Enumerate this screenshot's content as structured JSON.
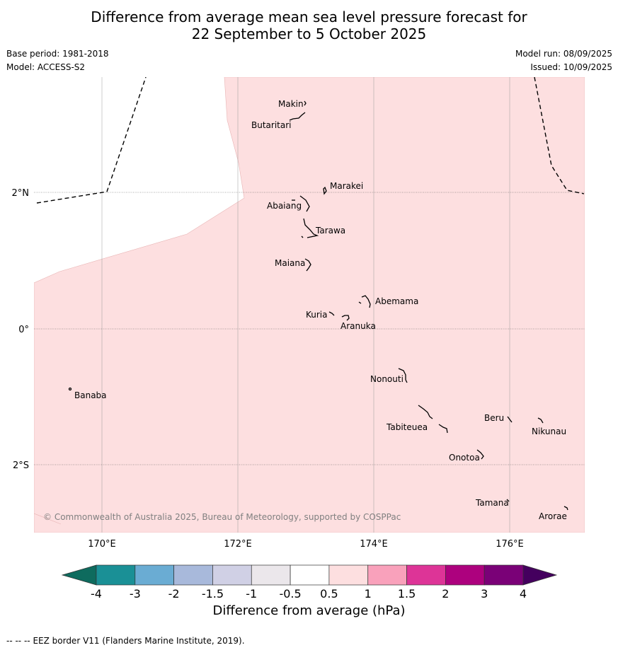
{
  "header": {
    "title_line1": "Difference from average mean sea level pressure forecast for",
    "title_line2": "22 September to 5 October 2025",
    "base_period": "Base period: 1981-2018",
    "model": "Model: ACCESS-S2",
    "model_run": "Model run: 08/09/2025",
    "issued": "Issued: 10/09/2025"
  },
  "map": {
    "lon_ticks": [
      "170°E",
      "172°E",
      "174°E",
      "176°E"
    ],
    "lat_ticks": [
      "2°N",
      "0°",
      "2°S"
    ],
    "islands": [
      {
        "name": "Makin",
        "lon": 172.95,
        "lat": 3.3
      },
      {
        "name": "Butaritari",
        "lon": 172.85,
        "lat": 3.05
      },
      {
        "name": "Marakei",
        "lon": 173.3,
        "lat": 2.0
      },
      {
        "name": "Abaiang",
        "lon": 172.98,
        "lat": 1.85
      },
      {
        "name": "Tarawa",
        "lon": 173.05,
        "lat": 1.45
      },
      {
        "name": "Maiana",
        "lon": 173.0,
        "lat": 0.95
      },
      {
        "name": "Abemama",
        "lon": 173.88,
        "lat": 0.37
      },
      {
        "name": "Kuria",
        "lon": 173.4,
        "lat": 0.23
      },
      {
        "name": "Aranuka",
        "lon": 173.62,
        "lat": 0.16
      },
      {
        "name": "Nonouti",
        "lon": 174.42,
        "lat": -0.66
      },
      {
        "name": "Banaba",
        "lon": 169.55,
        "lat": -0.88
      },
      {
        "name": "Tabiteuea",
        "lon": 174.82,
        "lat": -1.32
      },
      {
        "name": "Beru",
        "lon": 175.98,
        "lat": -1.32
      },
      {
        "name": "Nikunau",
        "lon": 176.45,
        "lat": -1.38
      },
      {
        "name": "Onotoa",
        "lon": 175.57,
        "lat": -1.85
      },
      {
        "name": "Tamana",
        "lon": 175.98,
        "lat": -2.5
      },
      {
        "name": "Arorae",
        "lon": 176.8,
        "lat": -2.65
      }
    ],
    "anomaly_field": "0.5 to 1 hPa above average over most of the region",
    "copyright": "© Commonwealth of Australia 2025, Bureau of Meteorology, supported by COSPPac"
  },
  "colorbar": {
    "tick_labels": [
      "-4",
      "-3",
      "-2",
      "-1.5",
      "-1",
      "-0.5",
      "0.5",
      "1",
      "1.5",
      "2",
      "3",
      "4"
    ],
    "under_color": "#0e6b5e",
    "over_color": "#44005e",
    "colors": [
      "#1a9096",
      "#6aacd3",
      "#a8b9db",
      "#d0d0e5",
      "#ebe7eb",
      "#ffffff",
      "#fddfe0",
      "#f9a1bb",
      "#dd3497",
      "#ad017e",
      "#7a0177"
    ],
    "label": "Difference from average (hPa)"
  },
  "footer": {
    "eez_legend_symbol": "-- -- --",
    "eez_legend": "EEZ border V11 (Flanders Marine Institute, 2019)."
  }
}
